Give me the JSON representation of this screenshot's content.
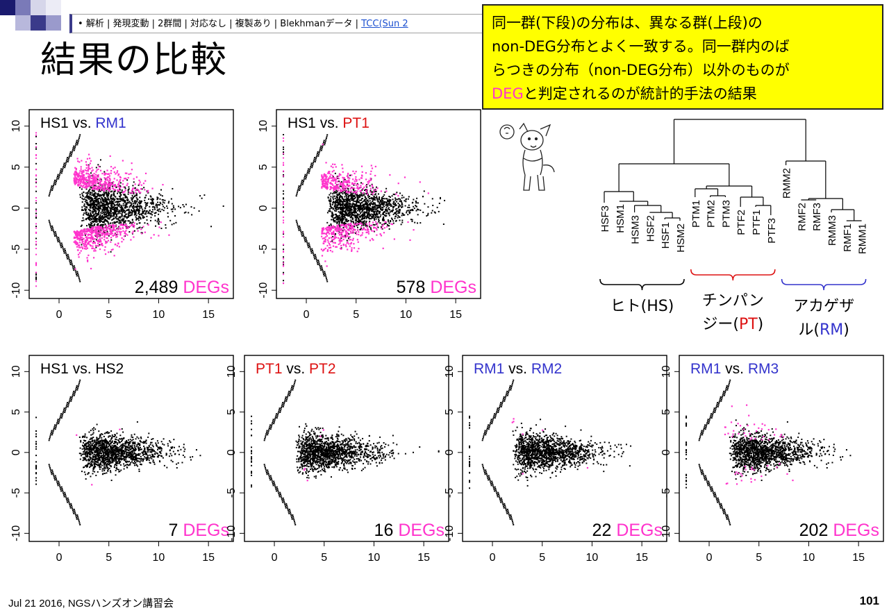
{
  "header": {
    "breadcrumb_bullet": "•",
    "breadcrumb_text": "解析 | 発現変動 | 2群間 | 対応なし | 複製あり | Blekhmanデータ | ",
    "breadcrumb_link": "TCC(Sun 2"
  },
  "title": "結果の比較",
  "callout": {
    "line1": "同一群(下段)の分布は、異なる群(上段)の",
    "line2": "non-DEG分布とよく一致する。同一群内のば",
    "line3": "らつきの分布（non-DEG分布）以外のものが",
    "line4_highlight": "DEG",
    "line4_rest": "と判定されるのが統計的手法の結果"
  },
  "colors": {
    "deg": "#ff33cc",
    "rm": "#3333cc",
    "pt": "#dd1111",
    "hs": "#000000",
    "callout_bg": "#ffff00"
  },
  "chart_data": [
    {
      "type": "scatter",
      "title_parts": [
        {
          "text": "HS1",
          "color": "black"
        },
        {
          "text": " vs. ",
          "color": "black"
        },
        {
          "text": "RM1",
          "color": "rm"
        }
      ],
      "degs_count": "2,489",
      "degs_label": "DEGs",
      "x_ticks": [
        "0",
        "5",
        "10",
        "15"
      ],
      "y_ticks": [
        "-10",
        "-5",
        "0",
        "5",
        "10"
      ],
      "xlim": [
        -3,
        17.5
      ],
      "ylim": [
        -11,
        12
      ],
      "spread": "wide"
    },
    {
      "type": "scatter",
      "title_parts": [
        {
          "text": "HS1",
          "color": "black"
        },
        {
          "text": " vs. ",
          "color": "black"
        },
        {
          "text": "PT1",
          "color": "pt"
        }
      ],
      "degs_count": "578",
      "degs_label": "DEGs",
      "x_ticks": [
        "0",
        "5",
        "10",
        "15"
      ],
      "y_ticks": [
        "-10",
        "-5",
        "0",
        "5",
        "10"
      ],
      "xlim": [
        -3,
        17.5
      ],
      "ylim": [
        -11,
        12
      ],
      "spread": "medium"
    },
    {
      "type": "scatter",
      "title_parts": [
        {
          "text": "HS1",
          "color": "black"
        },
        {
          "text": " vs. ",
          "color": "black"
        },
        {
          "text": "HS2",
          "color": "black"
        }
      ],
      "degs_count": "7",
      "degs_label": "DEGs",
      "x_ticks": [
        "0",
        "5",
        "10",
        "15"
      ],
      "y_ticks": [
        "-10",
        "-5",
        "0",
        "5",
        "10"
      ],
      "xlim": [
        -3,
        17.5
      ],
      "ylim": [
        -11,
        12
      ],
      "spread": "narrow"
    },
    {
      "type": "scatter",
      "title_parts": [
        {
          "text": "PT1",
          "color": "pt"
        },
        {
          "text": " vs. ",
          "color": "black"
        },
        {
          "text": "PT2",
          "color": "pt"
        }
      ],
      "degs_count": "16",
      "degs_label": "DEGs",
      "x_ticks": [
        "0",
        "5",
        "10",
        "15"
      ],
      "y_ticks": [
        "-10",
        "-5",
        "0",
        "5",
        "10"
      ],
      "xlim": [
        -3,
        17.5
      ],
      "ylim": [
        -11,
        12
      ],
      "spread": "narrow"
    },
    {
      "type": "scatter",
      "title_parts": [
        {
          "text": "RM1",
          "color": "rm"
        },
        {
          "text": " vs. ",
          "color": "black"
        },
        {
          "text": "RM2",
          "color": "rm"
        }
      ],
      "degs_count": "22",
      "degs_label": "DEGs",
      "x_ticks": [
        "0",
        "5",
        "10",
        "15"
      ],
      "y_ticks": [
        "-10",
        "-5",
        "0",
        "5",
        "10"
      ],
      "xlim": [
        -3,
        17.5
      ],
      "ylim": [
        -11,
        12
      ],
      "spread": "narrow"
    },
    {
      "type": "scatter",
      "title_parts": [
        {
          "text": "RM1",
          "color": "rm"
        },
        {
          "text": " vs. ",
          "color": "black"
        },
        {
          "text": "RM3",
          "color": "rm"
        }
      ],
      "degs_count": "202",
      "degs_label": "DEGs",
      "x_ticks": [
        "0",
        "5",
        "10",
        "15"
      ],
      "y_ticks": [
        "-10",
        "-5",
        "0",
        "5",
        "10"
      ],
      "xlim": [
        -3,
        17.5
      ],
      "ylim": [
        -11,
        12
      ],
      "spread": "narrow"
    }
  ],
  "dendrogram": {
    "leaves": [
      "HSF3",
      "HSM1",
      "HSM3",
      "HSF2",
      "HSF1",
      "HSM2",
      "PTM1",
      "PTM2",
      "PTM3",
      "PTF2",
      "PTF1",
      "PTF3",
      "RMM2",
      "RMF2",
      "RMF3",
      "RMM3",
      "RMF1",
      "RMM1"
    ],
    "groups": [
      {
        "label": "ヒト(HS)",
        "color": "hs"
      },
      {
        "label_line1": "チンパン",
        "label_line2_prefix": "ジー(",
        "label_line2_code": "PT",
        "label_line2_suffix": ")",
        "color": "pt"
      },
      {
        "label_line1": "アカゲザ",
        "label_line2_prefix": "ル(",
        "label_line2_code": "RM",
        "label_line2_suffix": ")",
        "color": "rm"
      }
    ]
  },
  "footer": {
    "left": "Jul 21 2016, NGSハンズオン講習会",
    "page": "101"
  }
}
